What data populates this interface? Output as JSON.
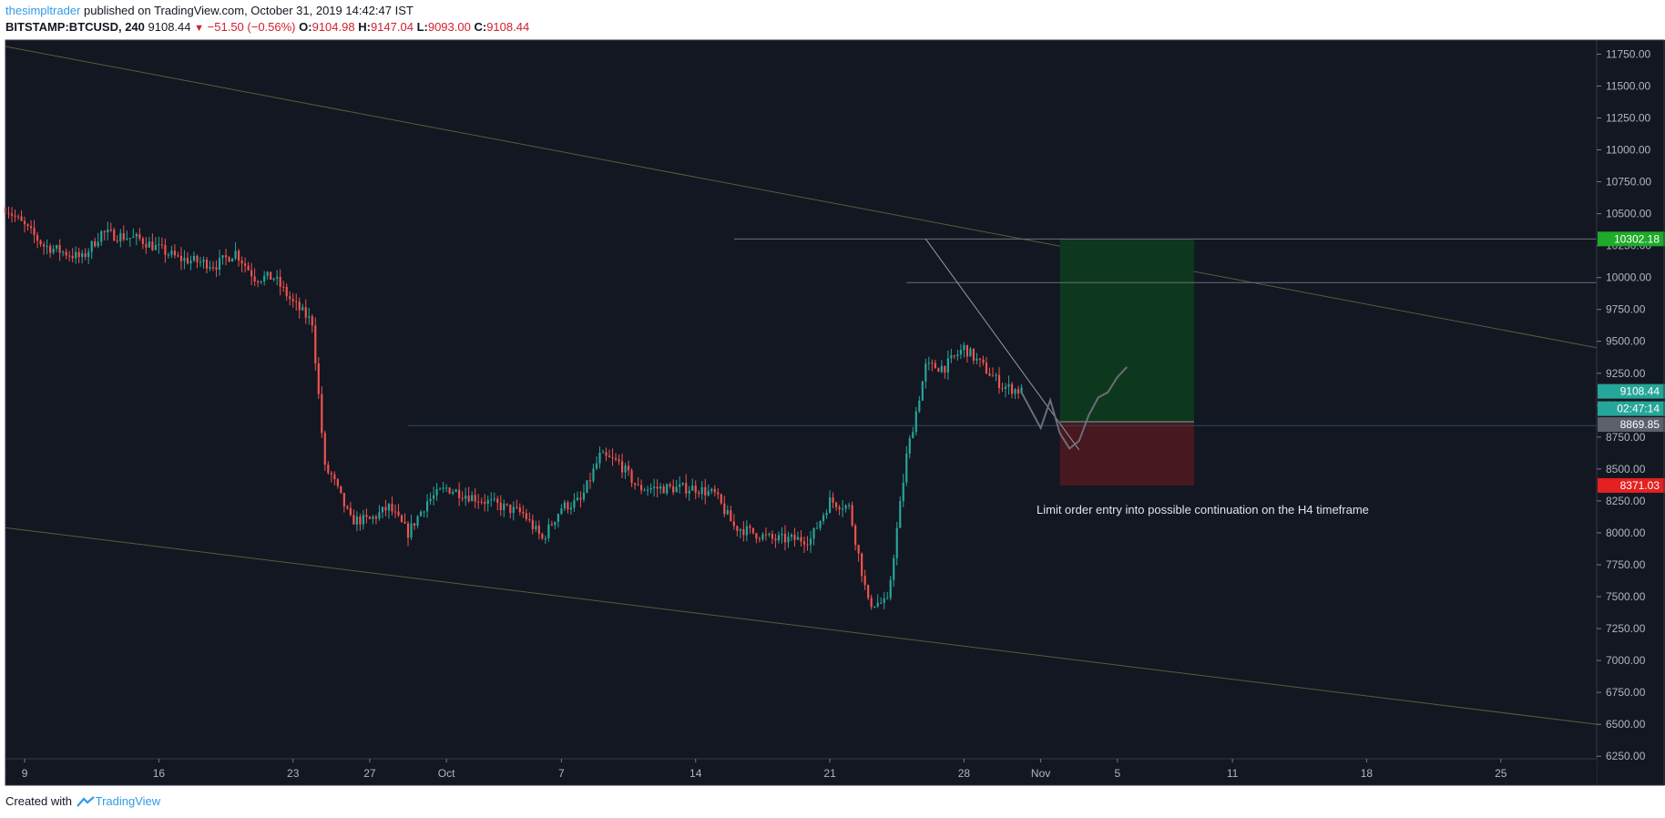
{
  "header": {
    "author": "thesimpltrader",
    "published_text": " published on TradingView.com, October 31, 2019 14:42:47 IST"
  },
  "ohlc": {
    "symbol": "BITSTAMP:BTCUSD, 240",
    "last": "9108.44",
    "change": "−51.50 (−0.56%)",
    "o_label": "O:",
    "o": "9104.98",
    "h_label": "H:",
    "h": "9147.04",
    "l_label": "L:",
    "l": "9093.00",
    "c_label": "C:",
    "c": "9108.44"
  },
  "footer": {
    "created_with": "Created with",
    "brand": "TradingView"
  },
  "colors": {
    "background": "#131722",
    "up": "#26a69a",
    "down": "#ef5350",
    "channel": "#5c5a3a",
    "profit_zone": "#0d3a1e",
    "loss_zone": "#4a1820",
    "price_label_up": "#26a69a",
    "price_label_target": "#1faa2a",
    "price_label_stop": "#e52020",
    "price_label_entry": "#5d606b"
  },
  "chart_data": {
    "type": "candlestick",
    "y_ticks": [
      "6250.00",
      "6500.00",
      "6750.00",
      "7000.00",
      "7250.00",
      "7500.00",
      "7750.00",
      "8000.00",
      "8250.00",
      "8500.00",
      "8750.00",
      "9000.00",
      "9250.00",
      "9500.00",
      "9750.00",
      "10000.00",
      "10250.00",
      "10500.00",
      "10750.00",
      "11000.00",
      "11250.00",
      "11500.00",
      "11750.00"
    ],
    "x_ticks": [
      {
        "label": "9",
        "date": "2019-09-09"
      },
      {
        "label": "16",
        "date": "2019-09-16"
      },
      {
        "label": "23",
        "date": "2019-09-23"
      },
      {
        "label": "27",
        "date": "2019-09-27"
      },
      {
        "label": "Oct",
        "date": "2019-10-01"
      },
      {
        "label": "7",
        "date": "2019-10-07"
      },
      {
        "label": "14",
        "date": "2019-10-14"
      },
      {
        "label": "21",
        "date": "2019-10-21"
      },
      {
        "label": "28",
        "date": "2019-10-28"
      },
      {
        "label": "Nov",
        "date": "2019-11-01"
      },
      {
        "label": "5",
        "date": "2019-11-05"
      },
      {
        "label": "11",
        "date": "2019-11-11"
      },
      {
        "label": "18",
        "date": "2019-11-18"
      },
      {
        "label": "25",
        "date": "2019-11-25"
      }
    ],
    "ylim": [
      6230,
      11860
    ],
    "xlim": [
      "2019-09-08",
      "2019-11-30"
    ],
    "close_path": [
      [
        "2019-09-08",
        10550
      ],
      [
        "2019-09-10",
        10250
      ],
      [
        "2019-09-12",
        10150
      ],
      [
        "2019-09-13",
        10350
      ],
      [
        "2019-09-15",
        10300
      ],
      [
        "2019-09-17",
        10150
      ],
      [
        "2019-09-19",
        10100
      ],
      [
        "2019-09-20",
        10200
      ],
      [
        "2019-09-21",
        10000
      ],
      [
        "2019-09-22",
        10000
      ],
      [
        "2019-09-23",
        9800
      ],
      [
        "2019-09-24",
        9650
      ],
      [
        "2019-09-24T16:00",
        8500
      ],
      [
        "2019-09-25",
        8450
      ],
      [
        "2019-09-26",
        8100
      ],
      [
        "2019-09-27",
        8100
      ],
      [
        "2019-09-28",
        8200
      ],
      [
        "2019-09-29",
        8000
      ],
      [
        "2019-09-30",
        8250
      ],
      [
        "2019-10-01",
        8350
      ],
      [
        "2019-10-03",
        8250
      ],
      [
        "2019-10-05",
        8150
      ],
      [
        "2019-10-06",
        7950
      ],
      [
        "2019-10-07",
        8200
      ],
      [
        "2019-10-08",
        8250
      ],
      [
        "2019-10-09",
        8600
      ],
      [
        "2019-10-10",
        8550
      ],
      [
        "2019-10-11",
        8350
      ],
      [
        "2019-10-13",
        8350
      ],
      [
        "2019-10-14",
        8350
      ],
      [
        "2019-10-15",
        8300
      ],
      [
        "2019-10-16",
        8050
      ],
      [
        "2019-10-18",
        7950
      ],
      [
        "2019-10-20",
        7950
      ],
      [
        "2019-10-21",
        8250
      ],
      [
        "2019-10-22",
        8200
      ],
      [
        "2019-10-23",
        7450
      ],
      [
        "2019-10-24",
        7450
      ],
      [
        "2019-10-25",
        8600
      ],
      [
        "2019-10-26",
        9300
      ],
      [
        "2019-10-27",
        9300
      ],
      [
        "2019-10-28",
        9450
      ],
      [
        "2019-10-29",
        9300
      ],
      [
        "2019-10-30",
        9150
      ],
      [
        "2019-10-31",
        9108
      ]
    ],
    "levels": {
      "resistance_high": 10302.18,
      "resistance_mid": 9960,
      "support_entry": 8840,
      "current": 9108.44
    },
    "price_labels": [
      "10302.18",
      "9108.44",
      "02:47:14",
      "8869.85",
      "8371.03"
    ],
    "position": {
      "start": "2019-11-02",
      "end": "2019-11-09",
      "target": 10302.18,
      "entry": 8869.85,
      "stop": 8371.03
    },
    "channel_lines": [
      [
        [
          "2019-09-08",
          11810
        ],
        [
          "2019-11-30",
          9450
        ]
      ],
      [
        [
          "2019-09-08",
          8040
        ],
        [
          "2019-11-30",
          6500
        ]
      ]
    ],
    "trendline": [
      [
        "2019-10-26",
        10302
      ],
      [
        "2019-11-03",
        8650
      ]
    ],
    "annotation": "Limit order entry into possible continuation on the H4 timeframe"
  }
}
